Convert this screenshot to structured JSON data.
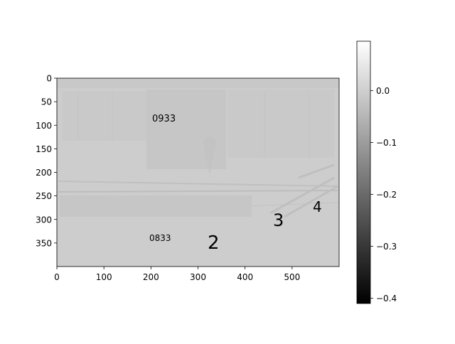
{
  "chart_data": {
    "type": "heatmap",
    "title": "",
    "xlabel": "",
    "ylabel": "",
    "xlim": [
      0,
      600
    ],
    "ylim": [
      400,
      0
    ],
    "x_ticks": [
      "0",
      "100",
      "200",
      "300",
      "400",
      "500"
    ],
    "y_ticks": [
      "0",
      "50",
      "100",
      "150",
      "200",
      "250",
      "300",
      "350"
    ],
    "colorbar": {
      "range": [
        -0.41,
        0.095
      ],
      "ticks": [
        "0.0",
        "−0.1",
        "−0.2",
        "−0.3",
        "−0.4"
      ],
      "colormap": "gray"
    },
    "image_text": [
      {
        "text": "0933"
      },
      {
        "text": "0833"
      },
      {
        "text": "2"
      },
      {
        "text": "3"
      },
      {
        "text": "4"
      }
    ],
    "colors": {
      "frame": "#000000",
      "base_gray": "#cccccc",
      "cbar_top": "#ffffff",
      "cbar_bottom": "#000000"
    }
  }
}
